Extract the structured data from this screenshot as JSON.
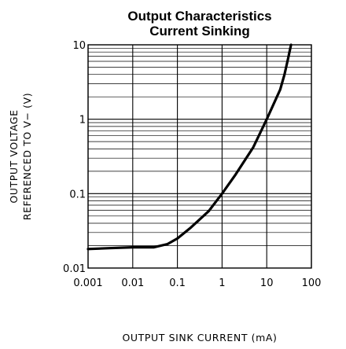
{
  "chart_data": {
    "type": "line",
    "title": [
      "Output Characteristics",
      "Current Sinking"
    ],
    "xlabel": "OUTPUT SINK CURRENT (mA)",
    "ylabel": [
      "OUTPUT VOLTAGE",
      "REFERENCED TO V−  (V)"
    ],
    "xscale": "log",
    "yscale": "log",
    "xlim": [
      0.001,
      100
    ],
    "ylim": [
      0.01,
      10
    ],
    "x_ticks": [
      0.001,
      0.01,
      0.1,
      1,
      10,
      100
    ],
    "x_tick_labels": [
      "0.001",
      "0.01",
      "0.1",
      "1",
      "10",
      "100"
    ],
    "y_ticks": [
      0.01,
      0.1,
      1,
      10
    ],
    "y_tick_labels": [
      "0.01",
      "0.1",
      "1",
      "10"
    ],
    "grid": true,
    "series": [
      {
        "x": [
          0.001,
          0.003,
          0.01,
          0.03,
          0.06,
          0.1,
          0.2,
          0.5,
          1,
          2,
          5,
          10,
          20,
          25,
          30,
          35
        ],
        "y": [
          0.018,
          0.0185,
          0.019,
          0.019,
          0.021,
          0.025,
          0.035,
          0.058,
          0.1,
          0.18,
          0.42,
          1.0,
          2.5,
          4.0,
          6.5,
          10
        ]
      }
    ]
  }
}
